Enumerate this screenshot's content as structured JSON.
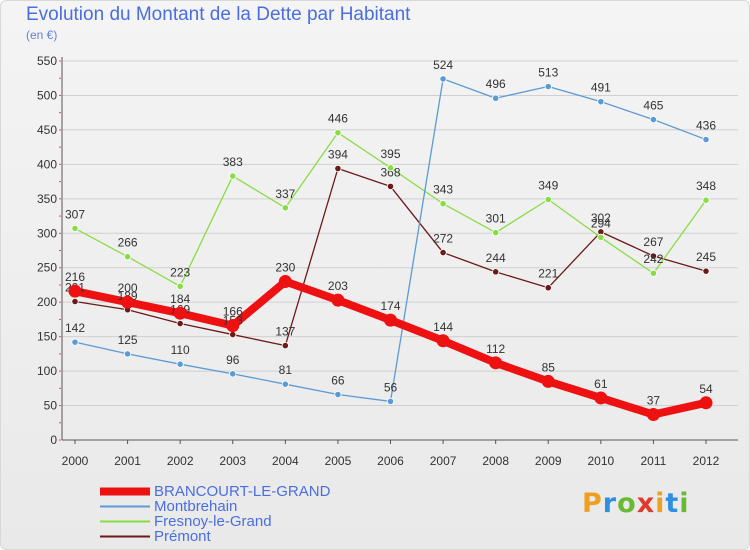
{
  "header": {
    "title": "Evolution du Montant de la Dette par Habitant",
    "subtitle": "(en €)"
  },
  "logo_text": "Proxiti",
  "chart_data": {
    "type": "line",
    "x": [
      "2000",
      "2001",
      "2002",
      "2003",
      "2004",
      "2005",
      "2006",
      "2007",
      "2008",
      "2009",
      "2010",
      "2011",
      "2012"
    ],
    "ylim": [
      0,
      550
    ],
    "yticks": [
      0,
      50,
      100,
      150,
      200,
      250,
      300,
      350,
      400,
      450,
      500,
      550
    ],
    "grid": "horizontal",
    "legend_position": "bottom-left",
    "series": [
      {
        "name": "BRANCOURT-LE-GRAND",
        "color": "#ee1111",
        "values": [
          216,
          200,
          184,
          166,
          230,
          203,
          174,
          144,
          112,
          85,
          61,
          37,
          54
        ]
      },
      {
        "name": "Montbrehain",
        "color": "#5b9bd5",
        "values": [
          142,
          125,
          110,
          96,
          81,
          66,
          56,
          524,
          496,
          513,
          491,
          465,
          436
        ]
      },
      {
        "name": "Fresnoy-le-Grand",
        "color": "#88dd44",
        "values": [
          307,
          266,
          223,
          383,
          337,
          446,
          395,
          343,
          301,
          349,
          294,
          242,
          348
        ]
      },
      {
        "name": "Prémont",
        "color": "#6b1a1a",
        "values": [
          201,
          189,
          169,
          153,
          137,
          394,
          368,
          272,
          244,
          221,
          302,
          267,
          245
        ]
      }
    ]
  }
}
